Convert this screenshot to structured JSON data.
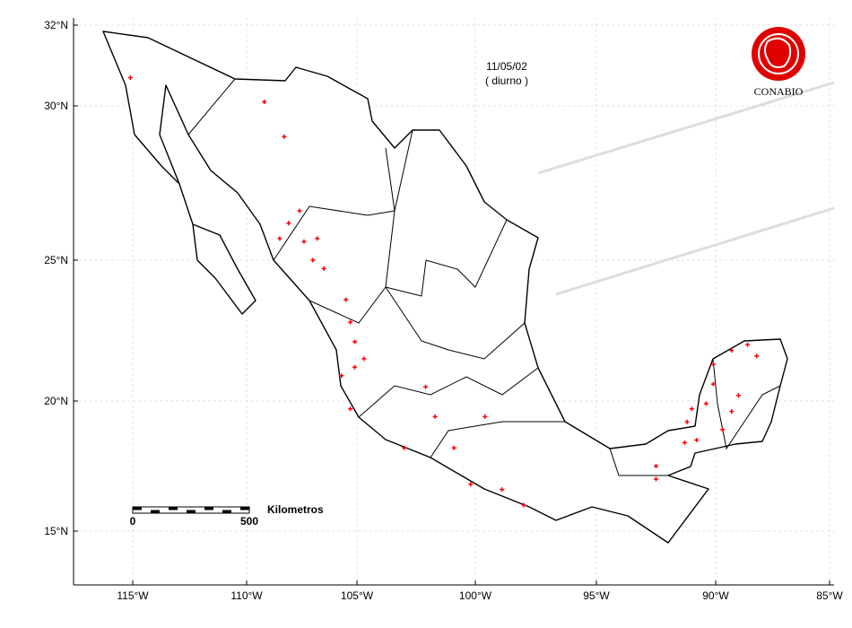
{
  "chart_data": {
    "type": "map",
    "date": "11/05/02",
    "subtitle": "( diurno )",
    "logo": "CONABIO",
    "scale_bar": {
      "label": "Kilometros",
      "start": 0,
      "end": 500
    },
    "xlim": [
      -117.5,
      -85
    ],
    "ylim": [
      13,
      32
    ],
    "xticks": [
      {
        "value": -115,
        "label": "115°W"
      },
      {
        "value": -110,
        "label": "110°W"
      },
      {
        "value": -105,
        "label": "105°W"
      },
      {
        "value": -100,
        "label": "100°W"
      },
      {
        "value": -95,
        "label": "95°W"
      },
      {
        "value": -90,
        "label": "90°W"
      },
      {
        "value": -85,
        "label": "85°W"
      }
    ],
    "yticks": [
      {
        "value": 15,
        "label": "15°N"
      },
      {
        "value": 20,
        "label": "20°N"
      },
      {
        "value": 25,
        "label": "25°N"
      },
      {
        "value": 30,
        "label": "30°N"
      },
      {
        "value": 32,
        "label": "32°N"
      }
    ],
    "grid": true,
    "color": "#ff0000",
    "points": {
      "x": [
        -115.1,
        -109.2,
        -108.3,
        -107.6,
        -108.5,
        -107.4,
        -107.0,
        -106.5,
        -105.5,
        -105.3,
        -105.1,
        -104.7,
        -105.7,
        -105.3,
        -103.0,
        -102.1,
        -101.7,
        -100.9,
        -100.2,
        -98.9,
        -98.0,
        -99.6,
        -92.5,
        -92.5,
        -91.2,
        -90.8,
        -90.4,
        -90.1,
        -89.3,
        -88.6,
        -88.2,
        -89.0,
        -89.7,
        -91.3,
        -89.3,
        -91.0,
        -90.1,
        -106.8,
        -108.1,
        -105.1
      ],
      "y": [
        30.7,
        30.1,
        29.0,
        26.6,
        25.7,
        25.6,
        25.0,
        24.7,
        23.6,
        22.8,
        22.1,
        21.5,
        20.9,
        19.7,
        18.2,
        20.5,
        19.4,
        18.2,
        16.8,
        16.6,
        16.0,
        19.4,
        17.5,
        17.0,
        19.2,
        18.5,
        19.9,
        21.3,
        21.8,
        22.0,
        21.6,
        20.2,
        18.9,
        18.4,
        19.6,
        19.7,
        20.6,
        25.7,
        26.2,
        21.2
      ]
    }
  }
}
